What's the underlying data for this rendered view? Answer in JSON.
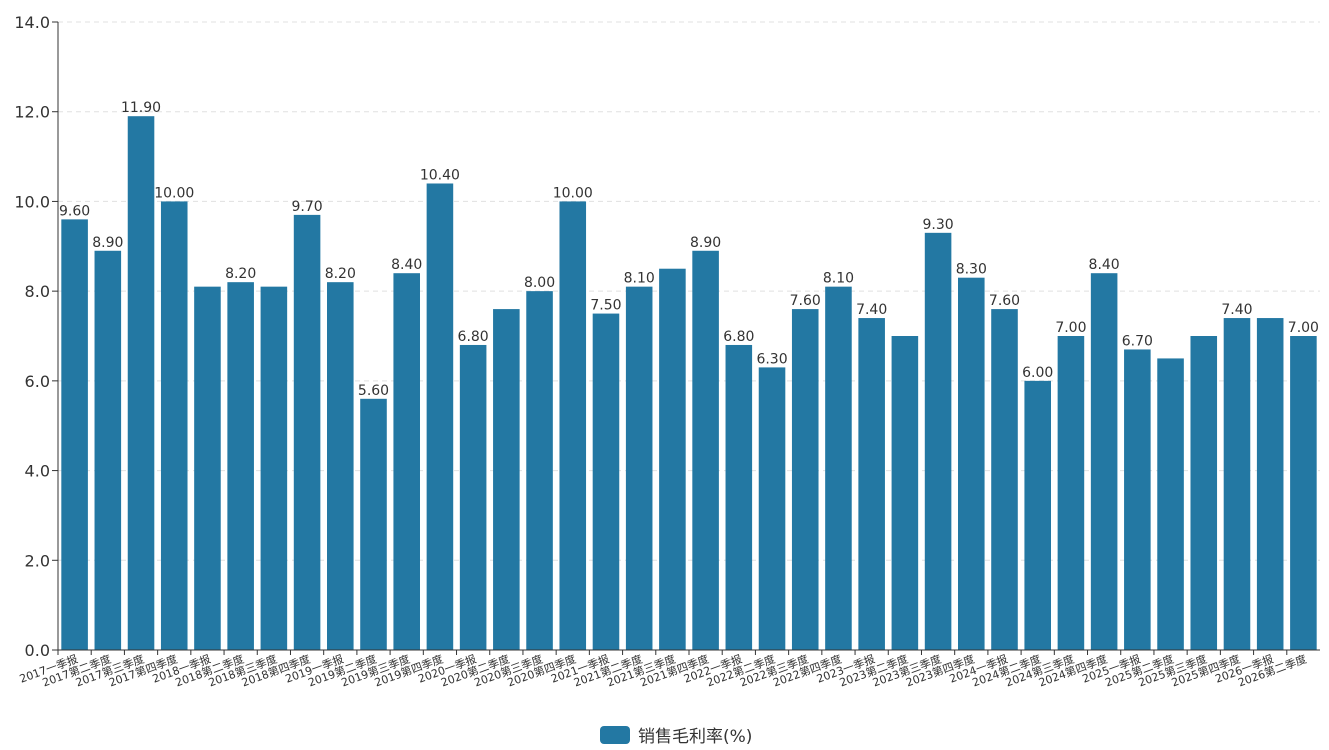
{
  "chart_data": {
    "type": "bar",
    "categories": [
      "2017一季报",
      "2017第二季度",
      "2017第三季度",
      "2017第四季度",
      "2018一季报",
      "2018第二季度",
      "2018第三季度",
      "2018第四季度",
      "2019一季报",
      "2019第二季度",
      "2019第三季度",
      "2019第四季度",
      "2020一季报",
      "2020第二季度",
      "2020第三季度",
      "2020第四季度",
      "2021一季报",
      "2021第二季度",
      "2021第三季度",
      "2021第四季度",
      "2022一季报",
      "2022第二季度",
      "2022第三季度",
      "2022第四季度",
      "2023一季报",
      "2023第二季度",
      "2023第三季度",
      "2023第四季度",
      "2024一季报",
      "2024第二季度",
      "2024第三季度",
      "2024第四季度",
      "2025一季报",
      "2025第二季度",
      "2025第三季度",
      "2025第四季度",
      "2026一季报",
      "2026第二季度"
    ],
    "series": [
      {
        "name": "销售毛利率(%)",
        "values": [
          9.6,
          8.9,
          11.9,
          10.0,
          8.1,
          8.2,
          8.1,
          9.7,
          8.2,
          5.6,
          8.4,
          10.4,
          6.8,
          7.6,
          8.0,
          10.0,
          7.5,
          8.1,
          8.5,
          8.9,
          6.8,
          6.3,
          7.6,
          8.1,
          7.4,
          7.0,
          9.3,
          8.3,
          7.6,
          6.0,
          7.0,
          8.4,
          6.7,
          6.5,
          7.0,
          7.4,
          7.4,
          7.0
        ],
        "labels": [
          "9.60",
          "8.90",
          "11.90",
          "10.00",
          "",
          "8.20",
          "",
          "9.70",
          "8.20",
          "5.60",
          "8.40",
          "10.40",
          "6.80",
          "",
          "8.00",
          "10.00",
          "7.50",
          "8.10",
          "",
          "8.90",
          "6.80",
          "6.30",
          "7.60",
          "8.10",
          "7.40",
          "",
          "9.30",
          "8.30",
          "7.60",
          "6.00",
          "7.00",
          "8.40",
          "6.70",
          "",
          "",
          "7.40",
          "",
          "7.00"
        ]
      }
    ],
    "ylim": [
      0,
      14
    ],
    "yticks": [
      "0.0",
      "2.0",
      "4.0",
      "6.0",
      "8.0",
      "10.0",
      "12.0",
      "14.0"
    ],
    "grid": true,
    "legend_position": "bottom",
    "colors": {
      "bar": "#2378a3",
      "axis": "#333333",
      "grid": "#e0e0e0"
    }
  }
}
